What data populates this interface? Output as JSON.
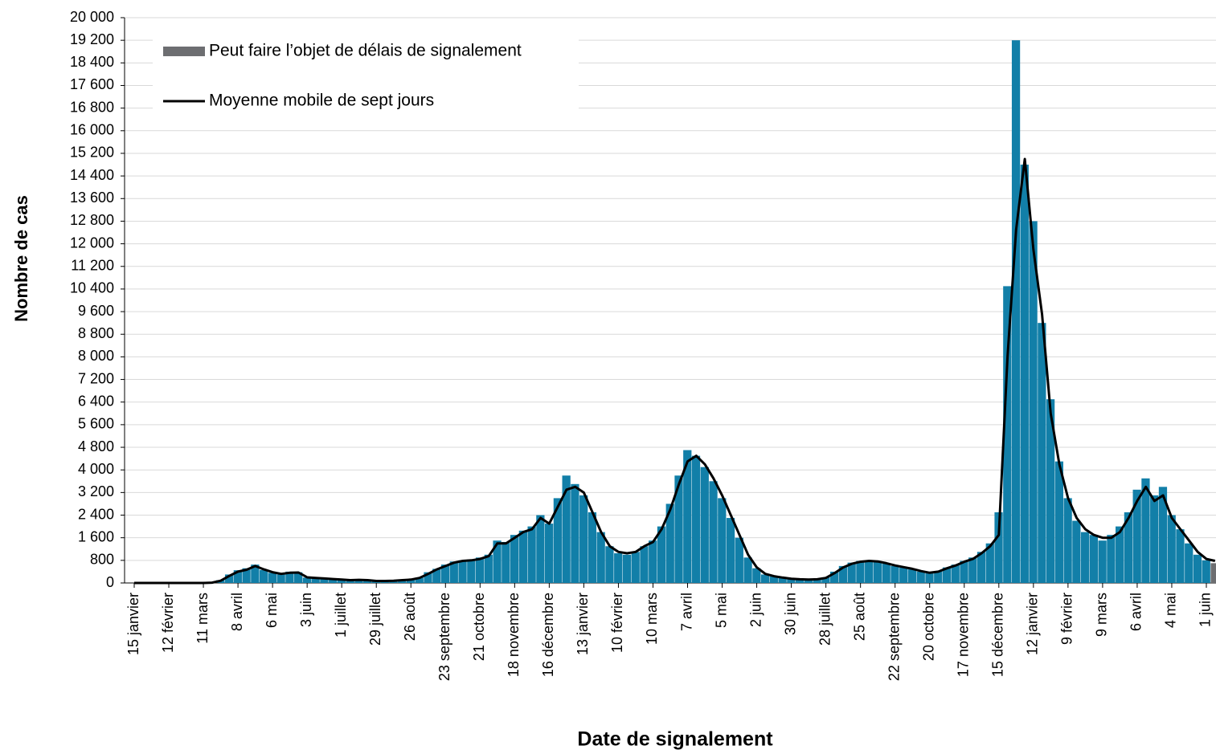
{
  "chart_data": {
    "type": "bar",
    "x_label": "Date de signalement",
    "y_label": "Nombre de cas",
    "categories": [
      "15 janvier",
      null,
      null,
      null,
      "12 février",
      null,
      null,
      null,
      "11 mars",
      null,
      null,
      null,
      "8 avril",
      null,
      null,
      null,
      "6 mai",
      null,
      null,
      null,
      "3 juin",
      null,
      null,
      null,
      "1 juillet",
      null,
      null,
      null,
      "29 juillet",
      null,
      null,
      null,
      "26 août",
      null,
      null,
      null,
      "23 septembre",
      null,
      null,
      null,
      "21 octobre",
      null,
      null,
      null,
      "18 novembre",
      null,
      null,
      null,
      "16 décembre",
      null,
      null,
      null,
      "13 janvier",
      null,
      null,
      null,
      "10 février",
      null,
      null,
      null,
      "10 mars",
      null,
      null,
      null,
      "7 avril",
      null,
      null,
      null,
      "5 mai",
      null,
      null,
      null,
      "2 juin",
      null,
      null,
      null,
      "30 juin",
      null,
      null,
      null,
      "28 juillet",
      null,
      null,
      null,
      "25 août",
      null,
      null,
      null,
      "22 septembre",
      null,
      null,
      null,
      "20 octobre",
      null,
      null,
      null,
      "17 novembre",
      null,
      null,
      null,
      "15 décembre",
      null,
      null,
      null,
      "12 janvier",
      null,
      null,
      null,
      "9 février",
      null,
      null,
      null,
      "9 mars",
      null,
      null,
      null,
      "6 avril",
      null,
      null,
      null,
      "4 mai",
      null,
      null,
      null,
      "1 juin",
      null
    ],
    "series": [
      {
        "type": "bar",
        "color": "#127fa8",
        "values": [
          0,
          0,
          0,
          0,
          0,
          0,
          0,
          0,
          0,
          20,
          100,
          300,
          450,
          520,
          650,
          460,
          360,
          300,
          400,
          380,
          190,
          170,
          150,
          140,
          110,
          90,
          110,
          90,
          70,
          60,
          75,
          110,
          130,
          190,
          380,
          500,
          650,
          760,
          800,
          830,
          900,
          1000,
          1500,
          1450,
          1700,
          1850,
          2000,
          2400,
          2100,
          3000,
          3800,
          3500,
          3100,
          2500,
          1800,
          1300,
          1050,
          1000,
          1100,
          1300,
          1500,
          2000,
          2800,
          3800,
          4700,
          4500,
          4100,
          3600,
          3000,
          2300,
          1600,
          900,
          520,
          300,
          230,
          180,
          140,
          120,
          110,
          140,
          200,
          400,
          600,
          720,
          780,
          800,
          750,
          680,
          600,
          540,
          480,
          400,
          340,
          420,
          550,
          650,
          780,
          900,
          1100,
          1400,
          2500,
          10500,
          19200,
          14800,
          12800,
          9200,
          6500,
          4300,
          3000,
          2200,
          1800,
          1700,
          1500,
          1700,
          2000,
          2500,
          3300,
          3700,
          3100,
          3400,
          2400,
          1900,
          1400,
          1000,
          800,
          null
        ]
      },
      {
        "type": "bar",
        "name": "Peut faire l’objet de délais de signalement",
        "color": "#6d6e71",
        "values": [
          null,
          null,
          null,
          null,
          null,
          null,
          null,
          null,
          null,
          null,
          null,
          null,
          null,
          null,
          null,
          null,
          null,
          null,
          null,
          null,
          null,
          null,
          null,
          null,
          null,
          null,
          null,
          null,
          null,
          null,
          null,
          null,
          null,
          null,
          null,
          null,
          null,
          null,
          null,
          null,
          null,
          null,
          null,
          null,
          null,
          null,
          null,
          null,
          null,
          null,
          null,
          null,
          null,
          null,
          null,
          null,
          null,
          null,
          null,
          null,
          null,
          null,
          null,
          null,
          null,
          null,
          null,
          null,
          null,
          null,
          null,
          null,
          null,
          null,
          null,
          null,
          null,
          null,
          null,
          null,
          null,
          null,
          null,
          null,
          null,
          null,
          null,
          null,
          null,
          null,
          null,
          null,
          null,
          null,
          null,
          null,
          null,
          null,
          null,
          null,
          null,
          null,
          null,
          null,
          null,
          null,
          null,
          null,
          null,
          null,
          null,
          null,
          null,
          null,
          null,
          null,
          null,
          null,
          null,
          null,
          null,
          null,
          null,
          null,
          null,
          700
        ]
      },
      {
        "type": "line",
        "name": "Moyenne mobile de sept jours",
        "color": "#000000",
        "values": [
          0,
          0,
          0,
          0,
          0,
          0,
          0,
          0,
          0,
          10,
          80,
          250,
          400,
          470,
          600,
          480,
          380,
          320,
          360,
          370,
          200,
          180,
          160,
          140,
          120,
          100,
          110,
          100,
          70,
          70,
          80,
          100,
          120,
          180,
          320,
          480,
          600,
          720,
          780,
          800,
          850,
          950,
          1400,
          1400,
          1600,
          1800,
          1900,
          2300,
          2100,
          2700,
          3300,
          3400,
          3200,
          2500,
          1800,
          1300,
          1100,
          1050,
          1100,
          1300,
          1450,
          1900,
          2600,
          3500,
          4300,
          4500,
          4200,
          3700,
          3100,
          2400,
          1700,
          1000,
          550,
          320,
          240,
          190,
          150,
          130,
          120,
          130,
          180,
          350,
          550,
          680,
          750,
          780,
          760,
          700,
          620,
          560,
          500,
          420,
          360,
          400,
          520,
          620,
          750,
          850,
          1050,
          1300,
          1700,
          8000,
          12500,
          15000,
          11800,
          9500,
          6000,
          4200,
          3000,
          2300,
          1900,
          1700,
          1600,
          1600,
          1800,
          2300,
          2900,
          3400,
          2900,
          3100,
          2300,
          1900,
          1500,
          1100,
          850,
          780
        ]
      }
    ],
    "ylim": [
      0,
      20000
    ],
    "yticks": [
      0,
      800,
      {
        "value": 1600,
        "label": "1 600"
      },
      {
        "value": 2400,
        "label": "2 400"
      },
      {
        "value": 3200,
        "label": "3 200"
      },
      {
        "value": 4000,
        "label": "4 000"
      },
      {
        "value": 4800,
        "label": "4 800"
      },
      {
        "value": 5600,
        "label": "5 600"
      },
      {
        "value": 6400,
        "label": "6 400"
      },
      {
        "value": 7200,
        "label": "7 200"
      },
      {
        "value": 8000,
        "label": "8 000"
      },
      {
        "value": 8800,
        "label": "8 800"
      },
      {
        "value": 9600,
        "label": "9 600"
      },
      {
        "value": 10400,
        "label": "10 400"
      },
      {
        "value": 11200,
        "label": "11 200"
      },
      {
        "value": 12000,
        "label": "12 000"
      },
      {
        "value": 12800,
        "label": "12 800"
      },
      {
        "value": 13600,
        "label": "13 600"
      },
      {
        "value": 14400,
        "label": "14 400"
      },
      {
        "value": 15200,
        "label": "15 200"
      },
      {
        "value": 16000,
        "label": "16 000"
      },
      {
        "value": 16800,
        "label": "16 800"
      },
      {
        "value": 17600,
        "label": "17 600"
      },
      {
        "value": 18400,
        "label": "18 400"
      },
      {
        "value": 19200,
        "label": "19 200"
      },
      {
        "value": 20000,
        "label": "20 000"
      }
    ],
    "grid": true
  }
}
